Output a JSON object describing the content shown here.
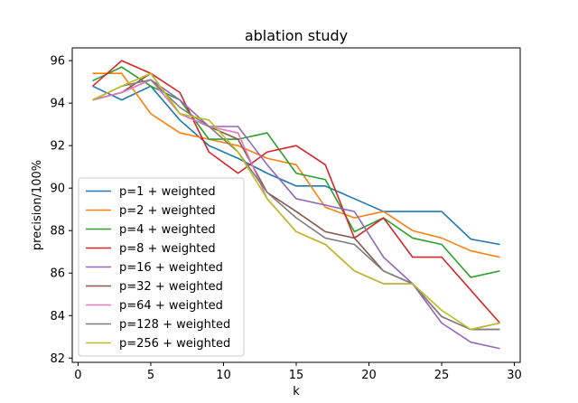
{
  "chart_data": {
    "type": "line",
    "title": "ablation study",
    "xlabel": "k",
    "ylabel": "precision/100%",
    "xlim": [
      -0.4,
      30.4
    ],
    "ylim": [
      81.8,
      96.6
    ],
    "x_ticks": [
      0,
      5,
      10,
      15,
      20,
      25,
      30
    ],
    "y_ticks": [
      82,
      84,
      86,
      88,
      90,
      92,
      94,
      96
    ],
    "grid": false,
    "legend_position": "lower-left",
    "x": [
      1,
      3,
      5,
      7,
      9,
      11,
      13,
      15,
      17,
      19,
      21,
      23,
      25,
      27,
      29
    ],
    "series": [
      {
        "name": "p=1 + weighted",
        "color": "#1f77b4",
        "values": [
          94.8,
          94.15,
          94.8,
          93.2,
          92.0,
          91.4,
          90.7,
          90.1,
          90.1,
          89.5,
          88.9,
          88.9,
          88.9,
          87.6,
          87.35
        ]
      },
      {
        "name": "p=2 + weighted",
        "color": "#ff7f0e",
        "values": [
          95.4,
          95.4,
          93.5,
          92.6,
          92.3,
          92.0,
          91.4,
          91.1,
          89.1,
          88.6,
          88.9,
          88.0,
          87.65,
          87.05,
          86.75
        ]
      },
      {
        "name": "p=4 + weighted",
        "color": "#2ca02c",
        "values": [
          95.05,
          95.7,
          94.8,
          94.15,
          92.3,
          92.3,
          92.6,
          90.7,
          90.4,
          87.95,
          88.6,
          87.65,
          87.35,
          85.8,
          86.1
        ]
      },
      {
        "name": "p=8 + weighted",
        "color": "#d62728",
        "values": [
          94.8,
          96.0,
          95.4,
          94.5,
          91.7,
          90.7,
          91.7,
          92.0,
          91.1,
          87.65,
          88.6,
          86.75,
          86.75,
          85.2,
          83.65
        ]
      },
      {
        "name": "p=16 + weighted",
        "color": "#9467bd",
        "values": [
          94.15,
          94.5,
          95.1,
          94.15,
          92.9,
          92.9,
          91.1,
          89.5,
          89.2,
          88.9,
          86.75,
          85.5,
          83.65,
          82.75,
          82.45
        ]
      },
      {
        "name": "p=32 + weighted",
        "color": "#8c564b",
        "values": [
          94.15,
          94.5,
          95.4,
          93.5,
          92.9,
          92.3,
          89.8,
          88.9,
          87.95,
          87.65,
          86.1,
          85.5,
          83.95,
          83.35,
          83.35
        ]
      },
      {
        "name": "p=64 + weighted",
        "color": "#e377c2",
        "values": [
          94.15,
          94.5,
          95.1,
          93.5,
          92.9,
          92.6,
          89.5,
          87.95,
          87.35,
          86.1,
          85.5,
          85.5,
          83.95,
          83.35,
          83.65
        ]
      },
      {
        "name": "p=128 + weighted",
        "color": "#7f7f7f",
        "values": [
          94.15,
          94.8,
          95.1,
          93.8,
          92.9,
          91.7,
          89.8,
          88.6,
          87.65,
          87.35,
          86.1,
          85.5,
          83.95,
          83.35,
          83.35
        ]
      },
      {
        "name": "p=256 + weighted",
        "color": "#bcbd22",
        "values": [
          94.15,
          94.8,
          95.4,
          93.5,
          93.2,
          91.7,
          89.5,
          87.95,
          87.35,
          86.1,
          85.5,
          85.5,
          84.25,
          83.35,
          83.65
        ]
      }
    ]
  }
}
